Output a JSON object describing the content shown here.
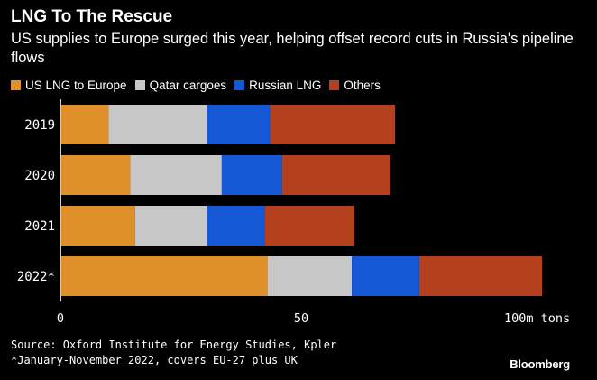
{
  "header": {
    "title": "LNG To The Rescue",
    "subtitle": "US supplies to Europe surged this year, helping offset record cuts in Russia's pipeline flows"
  },
  "chart_data": {
    "type": "bar",
    "orientation": "horizontal",
    "stacked": true,
    "categories": [
      "2019",
      "2020",
      "2021",
      "2022*"
    ],
    "series": [
      {
        "name": "US LNG to Europe",
        "color": "#e0902a",
        "values": [
          10,
          14.5,
          15.5,
          43
        ]
      },
      {
        "name": "Qatar cargoes",
        "color": "#c7c7c7",
        "values": [
          20.5,
          19,
          15,
          17.5
        ]
      },
      {
        "name": "Russian LNG",
        "color": "#1458d6",
        "values": [
          13,
          12.5,
          12,
          14
        ]
      },
      {
        "name": "Others",
        "color": "#b5401e",
        "values": [
          26,
          22.5,
          18.5,
          25.5
        ]
      }
    ],
    "x_ticks": [
      {
        "value": 0,
        "label": "0"
      },
      {
        "value": 50,
        "label": "50"
      },
      {
        "value": 100,
        "label": "100m tons"
      }
    ],
    "xlim": [
      0,
      100
    ],
    "grid": false,
    "legend_position": "top-left"
  },
  "footer": {
    "source": "Source: Oxford Institute for Energy Studies, Kpler",
    "note": "*January-November 2022, covers EU-27 plus UK"
  },
  "brand": "Bloomberg"
}
